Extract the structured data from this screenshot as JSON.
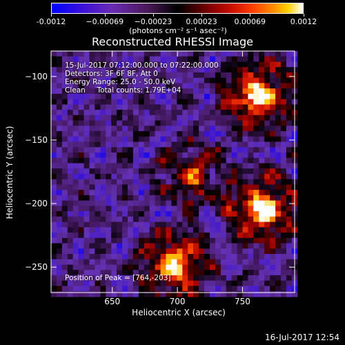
{
  "chart_data": {
    "type": "heatmap",
    "title": "Reconstructed RHESSI Image",
    "xlabel": "Heliocentric X (arcsec)",
    "ylabel": "Heliocentric Y (arcsec)",
    "xlim": [
      603,
      790
    ],
    "ylim": [
      -270,
      -80
    ],
    "x_ticks": [
      650,
      700,
      750
    ],
    "y_ticks": [
      -250,
      -200,
      -150,
      -100
    ],
    "colorbar": {
      "min": -0.0012,
      "max": 0.0012,
      "tick_values": [
        -0.0012,
        -0.00069,
        -0.00023,
        0.00023,
        0.00069,
        0.0012
      ],
      "tick_labels": [
        "-0.0012",
        "−0.00069",
        "−0.00023",
        "0.00023",
        "0.00069",
        "0.0012"
      ],
      "units": "(photons cm⁻² s⁻¹ asec⁻²)"
    },
    "sources": [
      {
        "x": 762,
        "y": -115,
        "strength": 1.0
      },
      {
        "x": 765,
        "y": -205,
        "strength": 1.0
      },
      {
        "x": 698,
        "y": -248,
        "strength": 0.9
      },
      {
        "x": 712,
        "y": -178,
        "strength": 0.55
      }
    ],
    "annotations": {
      "time_range": "15-Jul-2017 07:12:00.000 to 07:22:00.000",
      "detectors": "Detectors: 3F 6F 8F, Att 0",
      "energy": "Energy Range: 25.0 - 50.0 keV",
      "clean": "Clean     Total counts: 1.79E+04",
      "peak": "Position of Peak = [764,-203]"
    }
  },
  "footer": {
    "timestamp": "16-Jul-2017 12:54"
  }
}
